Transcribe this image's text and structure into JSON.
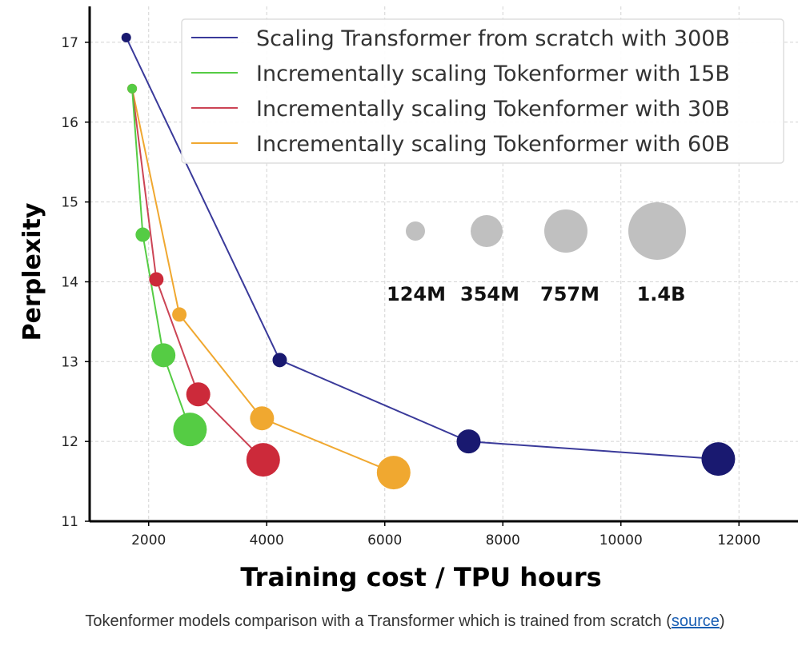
{
  "chart_data": {
    "type": "scatter",
    "xlabel": "Training cost / TPU hours",
    "ylabel": "Perplexity",
    "xlim": [
      1000,
      13000
    ],
    "ylim": [
      11,
      17.45
    ],
    "x_ticks": [
      2000,
      4000,
      6000,
      8000,
      10000,
      12000
    ],
    "y_ticks": [
      11,
      12,
      13,
      14,
      15,
      16,
      17
    ],
    "grid": true,
    "legend_position": "top-right",
    "series": [
      {
        "name": "Scaling Transformer from scratch with 300B",
        "color": "#191970",
        "line_color": "#3a3a9a",
        "points": [
          {
            "x": 1620,
            "y": 17.06,
            "size": "124M"
          },
          {
            "x": 4220,
            "y": 13.02,
            "size": "354M"
          },
          {
            "x": 7420,
            "y": 12.0,
            "size": "757M"
          },
          {
            "x": 11650,
            "y": 11.78,
            "size": "1.4B"
          }
        ]
      },
      {
        "name": "Incrementally scaling Tokenformer with 15B",
        "color": "#55cc44",
        "line_color": "#55cc44",
        "points": [
          {
            "x": 1720,
            "y": 16.42,
            "size": "124M"
          },
          {
            "x": 1900,
            "y": 14.59,
            "size": "354M"
          },
          {
            "x": 2250,
            "y": 13.08,
            "size": "757M"
          },
          {
            "x": 2700,
            "y": 12.15,
            "size": "1.4B"
          }
        ]
      },
      {
        "name": "Incrementally scaling Tokenformer with 30B",
        "color": "#cc2a3a",
        "line_color": "#cc4455",
        "points": [
          {
            "x": 1720,
            "y": 16.42,
            "size": "124M"
          },
          {
            "x": 2130,
            "y": 14.03,
            "size": "354M"
          },
          {
            "x": 2840,
            "y": 12.59,
            "size": "757M"
          },
          {
            "x": 3940,
            "y": 11.77,
            "size": "1.4B"
          }
        ]
      },
      {
        "name": "Incrementally scaling Tokenformer with 60B",
        "color": "#f0a830",
        "line_color": "#f0a830",
        "points": [
          {
            "x": 1720,
            "y": 16.42,
            "size": "124M"
          },
          {
            "x": 2520,
            "y": 13.59,
            "size": "354M"
          },
          {
            "x": 3920,
            "y": 12.29,
            "size": "757M"
          },
          {
            "x": 6150,
            "y": 11.61,
            "size": "1.4B"
          }
        ]
      }
    ],
    "size_legend": [
      {
        "label": "124M"
      },
      {
        "label": "354M"
      },
      {
        "label": "757M"
      },
      {
        "label": "1.4B"
      }
    ],
    "size_legend_color": "#c0c0c0"
  },
  "caption": {
    "text": "Tokenformer models comparison with a Transformer which is trained from scratch (",
    "link": "source",
    "suffix": ")"
  }
}
